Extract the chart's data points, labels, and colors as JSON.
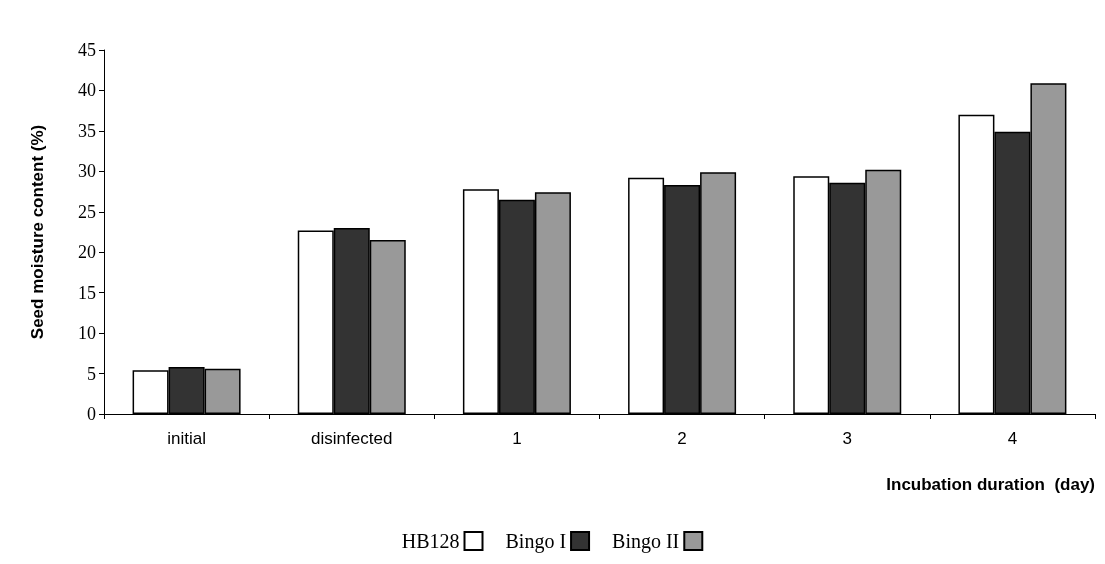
{
  "chart_data": {
    "type": "bar",
    "xlabel": "Incubation duration  (day)",
    "ylabel": "Seed moisture content (%)",
    "categories": [
      "initial",
      "disinfected",
      "1",
      "2",
      "3",
      "4"
    ],
    "series": [
      {
        "name": "HB128",
        "color": "#ffffff",
        "values": [
          5.4,
          22.7,
          27.8,
          29.2,
          29.4,
          37.0
        ]
      },
      {
        "name": "Bingo I",
        "color": "#333333",
        "values": [
          5.8,
          23.0,
          26.5,
          28.3,
          28.6,
          34.9
        ]
      },
      {
        "name": "Bingo II",
        "color": "#999999",
        "values": [
          5.6,
          21.5,
          27.4,
          29.9,
          30.2,
          40.9
        ]
      }
    ],
    "ylim": [
      0,
      45
    ],
    "yticks": [
      0,
      5,
      10,
      15,
      20,
      25,
      30,
      35,
      40,
      45
    ],
    "grid": false,
    "legend": "bottom"
  }
}
